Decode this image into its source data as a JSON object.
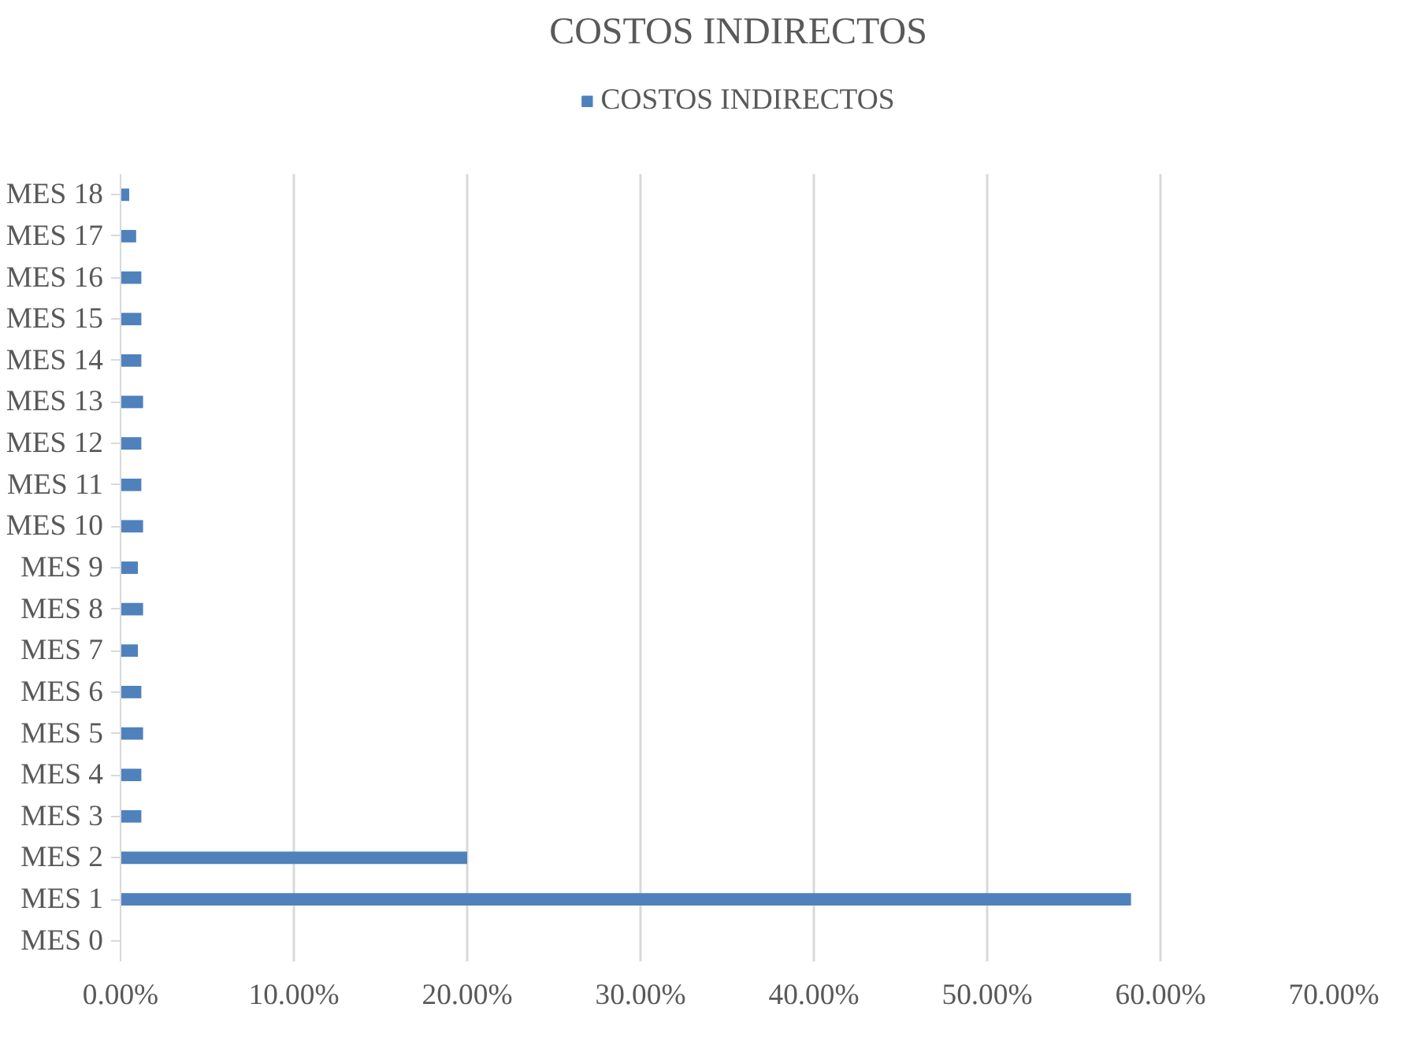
{
  "chart_data": {
    "type": "bar",
    "orientation": "horizontal",
    "title": "COSTOS INDIRECTOS",
    "categories": [
      "MES 18",
      "MES 17",
      "MES 16",
      "MES 15",
      "MES 14",
      "MES 13",
      "MES 12",
      "MES 11",
      "MES 10",
      "MES 9",
      "MES 8",
      "MES 7",
      "MES 6",
      "MES 5",
      "MES 4",
      "MES 3",
      "MES 2",
      "MES 1",
      "MES 0"
    ],
    "series": [
      {
        "name": "COSTOS INDIRECTOS",
        "color": "#4f81bd",
        "values": [
          0.5,
          0.9,
          1.2,
          1.2,
          1.2,
          1.3,
          1.2,
          1.2,
          1.3,
          1.0,
          1.3,
          1.0,
          1.2,
          1.3,
          1.2,
          1.2,
          20.0,
          58.3,
          0
        ]
      }
    ],
    "xlim": [
      0,
      70
    ],
    "xticks": [
      {
        "value": 0,
        "label": "0.00%"
      },
      {
        "value": 10,
        "label": "10.00%"
      },
      {
        "value": 20,
        "label": "20.00%"
      },
      {
        "value": 30,
        "label": "30.00%"
      },
      {
        "value": 40,
        "label": "40.00%"
      },
      {
        "value": 50,
        "label": "50.00%"
      },
      {
        "value": 60,
        "label": "60.00%"
      },
      {
        "value": 70,
        "label": "70.00%"
      }
    ],
    "grid": "x",
    "legend": "top"
  }
}
